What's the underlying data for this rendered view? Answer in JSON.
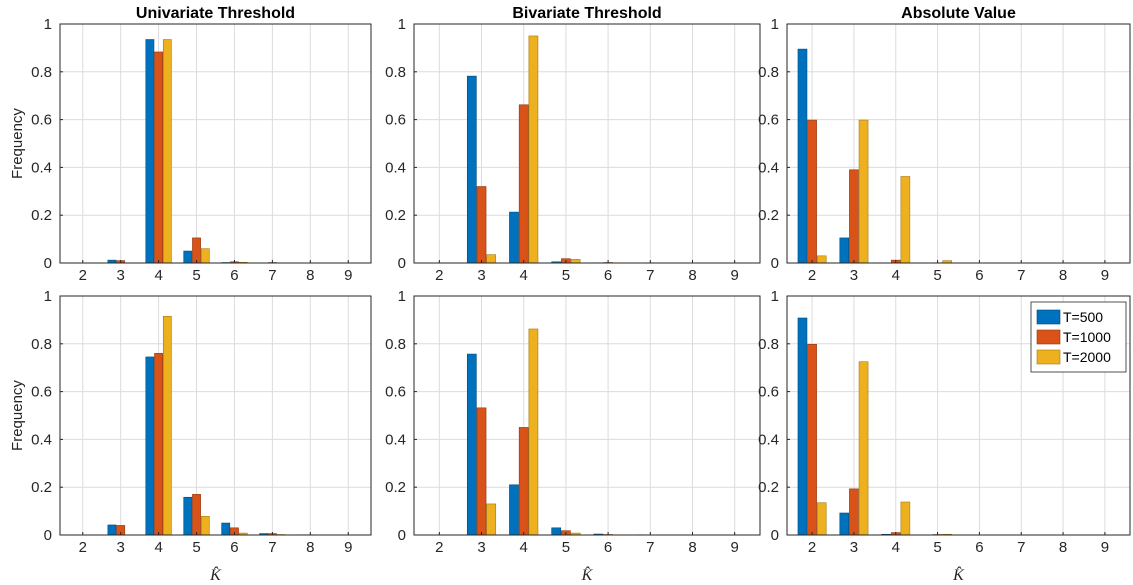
{
  "colors": {
    "T500": "#0072BD",
    "T1000": "#D95319",
    "T2000": "#EDB120"
  },
  "legend": {
    "position": "top-right",
    "entries": [
      "T=500",
      "T=1000",
      "T=2000"
    ]
  },
  "chart_data": [
    {
      "type": "bar",
      "title": "Univariate Threshold",
      "xlabel": "",
      "ylabel": "Frequency",
      "categories": [
        "2",
        "3",
        "4",
        "5",
        "6",
        "7",
        "8",
        "9"
      ],
      "yticks": [
        "0",
        "0.2",
        "0.4",
        "0.6",
        "0.8",
        "1"
      ],
      "ylim": [
        0,
        1
      ],
      "grid": true,
      "series": [
        {
          "name": "T=500",
          "values": [
            0,
            0.012,
            0.935,
            0.05,
            0.002,
            0,
            0,
            0
          ]
        },
        {
          "name": "T=1000",
          "values": [
            0,
            0.01,
            0.883,
            0.105,
            0.005,
            0.002,
            0,
            0
          ]
        },
        {
          "name": "T=2000",
          "values": [
            0,
            0,
            0.935,
            0.06,
            0.003,
            0.001,
            0,
            0
          ]
        }
      ]
    },
    {
      "type": "bar",
      "title": "Bivariate Threshold",
      "xlabel": "",
      "ylabel": "",
      "categories": [
        "2",
        "3",
        "4",
        "5",
        "6",
        "7",
        "8",
        "9"
      ],
      "yticks": [
        "0",
        "0.2",
        "0.4",
        "0.6",
        "0.8",
        "1"
      ],
      "ylim": [
        0,
        1
      ],
      "grid": true,
      "series": [
        {
          "name": "T=500",
          "values": [
            0,
            0.782,
            0.213,
            0.005,
            0.001,
            0,
            0,
            0
          ]
        },
        {
          "name": "T=1000",
          "values": [
            0,
            0.32,
            0.662,
            0.018,
            0.002,
            0.001,
            0,
            0
          ]
        },
        {
          "name": "T=2000",
          "values": [
            0,
            0.035,
            0.95,
            0.015,
            0.001,
            0,
            0,
            0
          ]
        }
      ]
    },
    {
      "type": "bar",
      "title": "Absolute Value",
      "xlabel": "",
      "ylabel": "",
      "categories": [
        "2",
        "3",
        "4",
        "5",
        "6",
        "7",
        "8",
        "9"
      ],
      "yticks": [
        "0",
        "0.2",
        "0.4",
        "0.6",
        "0.8",
        "1"
      ],
      "ylim": [
        0,
        1
      ],
      "grid": true,
      "series": [
        {
          "name": "T=500",
          "values": [
            0.895,
            0.105,
            0,
            0,
            0,
            0,
            0,
            0
          ]
        },
        {
          "name": "T=1000",
          "values": [
            0.598,
            0.39,
            0.012,
            0.001,
            0,
            0,
            0,
            0
          ]
        },
        {
          "name": "T=2000",
          "values": [
            0.03,
            0.598,
            0.362,
            0.01,
            0,
            0,
            0,
            0
          ]
        }
      ]
    },
    {
      "type": "bar",
      "title": "",
      "xlabel": "K̂",
      "ylabel": "Frequency",
      "categories": [
        "2",
        "3",
        "4",
        "5",
        "6",
        "7",
        "8",
        "9"
      ],
      "yticks": [
        "0",
        "0.2",
        "0.4",
        "0.6",
        "0.8",
        "1"
      ],
      "ylim": [
        0,
        1
      ],
      "grid": true,
      "series": [
        {
          "name": "T=500",
          "values": [
            0,
            0.042,
            0.745,
            0.158,
            0.05,
            0.006,
            0.001,
            0
          ]
        },
        {
          "name": "T=1000",
          "values": [
            0,
            0.04,
            0.76,
            0.17,
            0.03,
            0.006,
            0.001,
            0
          ]
        },
        {
          "name": "T=2000",
          "values": [
            0,
            0,
            0.915,
            0.078,
            0.008,
            0.002,
            0,
            0
          ]
        }
      ]
    },
    {
      "type": "bar",
      "title": "",
      "xlabel": "K̂",
      "ylabel": "",
      "categories": [
        "2",
        "3",
        "4",
        "5",
        "6",
        "7",
        "8",
        "9"
      ],
      "yticks": [
        "0",
        "0.2",
        "0.4",
        "0.6",
        "0.8",
        "1"
      ],
      "ylim": [
        0,
        1
      ],
      "grid": true,
      "series": [
        {
          "name": "T=500",
          "values": [
            0,
            0.757,
            0.21,
            0.03,
            0.004,
            0.001,
            0,
            0
          ]
        },
        {
          "name": "T=1000",
          "values": [
            0,
            0.532,
            0.45,
            0.018,
            0.002,
            0,
            0,
            0
          ]
        },
        {
          "name": "T=2000",
          "values": [
            0,
            0.13,
            0.862,
            0.008,
            0.001,
            0,
            0,
            0
          ]
        }
      ]
    },
    {
      "type": "bar",
      "title": "",
      "xlabel": "K̂",
      "ylabel": "",
      "categories": [
        "2",
        "3",
        "4",
        "5",
        "6",
        "7",
        "8",
        "9"
      ],
      "yticks": [
        "0",
        "0.2",
        "0.4",
        "0.6",
        "0.8",
        "1"
      ],
      "ylim": [
        0,
        1
      ],
      "grid": true,
      "series": [
        {
          "name": "T=500",
          "values": [
            0.908,
            0.092,
            0.003,
            0,
            0,
            0,
            0,
            0
          ]
        },
        {
          "name": "T=1000",
          "values": [
            0.798,
            0.193,
            0.01,
            0.002,
            0,
            0,
            0,
            0
          ]
        },
        {
          "name": "T=2000",
          "values": [
            0.135,
            0.725,
            0.138,
            0.003,
            0,
            0,
            0,
            0
          ]
        }
      ]
    }
  ]
}
